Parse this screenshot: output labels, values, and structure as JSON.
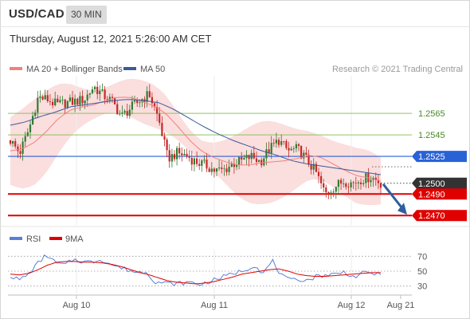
{
  "header": {
    "symbol": "USD/CAD",
    "timeframe": "30 MIN",
    "datetime": "Thursday, August 12, 2021 5:26:00 AM CET"
  },
  "legend": {
    "ma20_label": "MA 20 + Bollinger Bands",
    "ma50_label": "MA 50",
    "credit": "Research © 2021 Trading Central",
    "rsi_label": "RSI",
    "ma9_label": "9MA"
  },
  "colors": {
    "ma20": "#f08080",
    "bands_fill": "#fbdada",
    "ma50": "#3b5a9a",
    "support_red": "#e00000",
    "resistance_green": "#8fc45f",
    "pivot_blue": "#2962d6",
    "current_dark": "#333333",
    "rsi": "#5a7fd6",
    "rsi_ma9": "#e00000",
    "arrow": "#2f5f9e",
    "candle_up": "#2e7d32",
    "candle_down": "#c62828"
  },
  "chart_data": [
    {
      "type": "candlestick",
      "title": "USD/CAD",
      "x_ticks": [
        "Aug 10",
        "Aug 11",
        "Aug 12",
        "Aug 21"
      ],
      "y_range": [
        1.2462,
        1.26
      ],
      "levels": [
        {
          "value": 1.2565,
          "label": "1.2565",
          "style": "resistance"
        },
        {
          "value": 1.2545,
          "label": "1.2545",
          "style": "resistance"
        },
        {
          "value": 1.2525,
          "label": "1.2525",
          "style": "pivot"
        },
        {
          "value": 1.25,
          "label": "1.2500",
          "style": "current"
        },
        {
          "value": 1.249,
          "label": "1.2490",
          "style": "support"
        },
        {
          "value": 1.247,
          "label": "1.2470",
          "style": "support"
        }
      ],
      "current_price": 1.25,
      "projection_target": 1.247,
      "close_path": [
        1.254,
        1.2528,
        1.255,
        1.258,
        1.2578,
        1.2573,
        1.2575,
        1.2576,
        1.2578,
        1.259,
        1.2582,
        1.2576,
        1.2562,
        1.257,
        1.2577,
        1.2583,
        1.256,
        1.2523,
        1.2528,
        1.2526,
        1.252,
        1.2517,
        1.2512,
        1.2512,
        1.2518,
        1.2521,
        1.2525,
        1.252,
        1.2532,
        1.254,
        1.253,
        1.2532,
        1.2522,
        1.251,
        1.249,
        1.2497,
        1.2502,
        1.25,
        1.2504,
        1.2506,
        1.25
      ],
      "ma20_path": [
        1.253,
        1.2532,
        1.2538,
        1.2548,
        1.256,
        1.2568,
        1.2571,
        1.2573,
        1.2577,
        1.258,
        1.258,
        1.2576,
        1.2572,
        1.2565,
        1.2553,
        1.254,
        1.253,
        1.2524,
        1.252,
        1.2517,
        1.2517,
        1.2519,
        1.252,
        1.2521,
        1.2523,
        1.2526,
        1.2524,
        1.2518,
        1.2512,
        1.2507,
        1.2505,
        1.2502
      ],
      "ma50_path": [
        1.2554,
        1.2557,
        1.2562,
        1.2566,
        1.2571,
        1.2573,
        1.2575,
        1.2577,
        1.2578,
        1.2577,
        1.2575,
        1.2569,
        1.2561,
        1.2553,
        1.2546,
        1.254,
        1.2535,
        1.253,
        1.2526,
        1.2521,
        1.2518,
        1.2516,
        1.2514,
        1.2512,
        1.251,
        1.2508
      ]
    },
    {
      "type": "line",
      "title": "RSI",
      "y_ticks": [
        70,
        50,
        30
      ],
      "y_range": [
        20,
        80
      ],
      "series": [
        {
          "name": "RSI",
          "values": [
            44,
            38,
            46,
            60,
            72,
            61,
            58,
            66,
            63,
            62,
            66,
            60,
            55,
            52,
            48,
            50,
            36,
            34,
            33,
            34,
            35,
            32,
            36,
            40,
            44,
            48,
            52,
            58,
            47,
            64,
            44,
            37,
            39,
            38,
            44,
            45,
            46,
            49,
            42,
            47,
            48,
            44
          ]
        },
        {
          "name": "9MA",
          "values": [
            46,
            45,
            47,
            52,
            58,
            62,
            63,
            63,
            62,
            62,
            61,
            59,
            56,
            52,
            48,
            45,
            41,
            37,
            35,
            34,
            33,
            34,
            36,
            39,
            42,
            46,
            48,
            50,
            52,
            53,
            50,
            46,
            44,
            43,
            43,
            44,
            45,
            46,
            47,
            48,
            48
          ]
        }
      ]
    }
  ]
}
